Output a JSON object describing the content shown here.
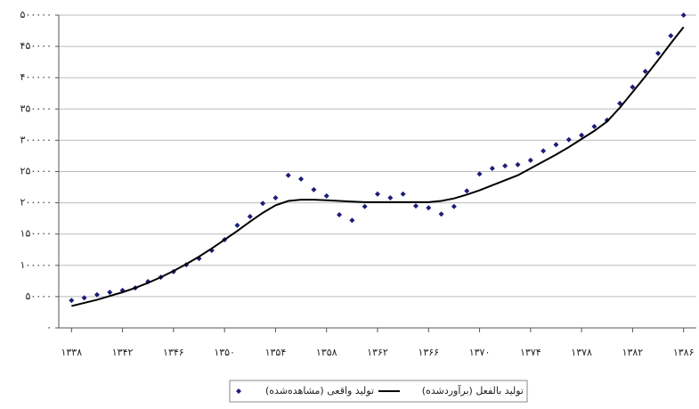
{
  "chart_data": {
    "type": "line",
    "xlim": [
      1337,
      1387
    ],
    "ylim": [
      0,
      500000
    ],
    "grid": true,
    "legend": "bottom",
    "x": [
      1338,
      1339,
      1340,
      1341,
      1342,
      1343,
      1344,
      1345,
      1346,
      1347,
      1348,
      1349,
      1350,
      1351,
      1352,
      1353,
      1354,
      1355,
      1356,
      1357,
      1358,
      1359,
      1360,
      1361,
      1362,
      1363,
      1364,
      1365,
      1366,
      1367,
      1368,
      1369,
      1370,
      1371,
      1372,
      1373,
      1374,
      1375,
      1376,
      1377,
      1378,
      1379,
      1380,
      1381,
      1382,
      1383,
      1384,
      1385,
      1386
    ],
    "xticks": [
      {
        "value": 1338,
        "label": "۱۳۳۸"
      },
      {
        "value": 1342,
        "label": "۱۳۴۲"
      },
      {
        "value": 1346,
        "label": "۱۳۴۶"
      },
      {
        "value": 1350,
        "label": "۱۳۵۰"
      },
      {
        "value": 1354,
        "label": "۱۳۵۴"
      },
      {
        "value": 1358,
        "label": "۱۳۵۸"
      },
      {
        "value": 1362,
        "label": "۱۳۶۲"
      },
      {
        "value": 1366,
        "label": "۱۳۶۶"
      },
      {
        "value": 1370,
        "label": "۱۳۷۰"
      },
      {
        "value": 1374,
        "label": "۱۳۷۴"
      },
      {
        "value": 1378,
        "label": "۱۳۷۸"
      },
      {
        "value": 1382,
        "label": "۱۳۸۲"
      },
      {
        "value": 1386,
        "label": "۱۳۸۶"
      }
    ],
    "yticks": [
      {
        "value": 0,
        "label": "۰"
      },
      {
        "value": 50000,
        "label": "۵۰۰۰۰"
      },
      {
        "value": 100000,
        "label": "۱۰۰۰۰۰"
      },
      {
        "value": 150000,
        "label": "۱۵۰۰۰۰"
      },
      {
        "value": 200000,
        "label": "۲۰۰۰۰۰"
      },
      {
        "value": 250000,
        "label": "۲۵۰۰۰۰"
      },
      {
        "value": 300000,
        "label": "۳۰۰۰۰۰"
      },
      {
        "value": 350000,
        "label": "۳۵۰۰۰۰"
      },
      {
        "value": 400000,
        "label": "۴۰۰۰۰۰"
      },
      {
        "value": 450000,
        "label": "۴۵۰۰۰۰"
      },
      {
        "value": 500000,
        "label": "۵۰۰۰۰۰"
      }
    ],
    "series": [
      {
        "name": "تولید واقعی (مشاهده‌شده)",
        "color": "#1c1c78",
        "mode": "markers",
        "values": [
          44000,
          48000,
          53000,
          57000,
          60000,
          64000,
          74000,
          81000,
          90000,
          101000,
          111000,
          124000,
          141000,
          164000,
          178000,
          199000,
          208000,
          244000,
          238000,
          221000,
          211000,
          181000,
          172000,
          194000,
          214000,
          208000,
          214000,
          195000,
          192000,
          182000,
          194000,
          219000,
          246000,
          255000,
          259000,
          261000,
          268000,
          283000,
          293000,
          301000,
          308000,
          322000,
          332000,
          359000,
          385000,
          410000,
          439000,
          467000,
          500000
        ]
      },
      {
        "name": "تولید بالفعل (برآوردشده)",
        "color": "#000000",
        "mode": "line",
        "values": [
          35000,
          40000,
          45000,
          51000,
          57000,
          64000,
          72000,
          81000,
          91000,
          102000,
          114000,
          127000,
          141000,
          155000,
          170000,
          184000,
          196000,
          203000,
          205000,
          205000,
          204000,
          203000,
          202000,
          201000,
          201000,
          201000,
          201000,
          201000,
          201000,
          203000,
          207000,
          213000,
          220000,
          228000,
          236000,
          244000,
          255000,
          266000,
          277000,
          289000,
          302000,
          315000,
          330000,
          352000,
          377000,
          402000,
          428000,
          455000,
          481000
        ]
      }
    ]
  }
}
